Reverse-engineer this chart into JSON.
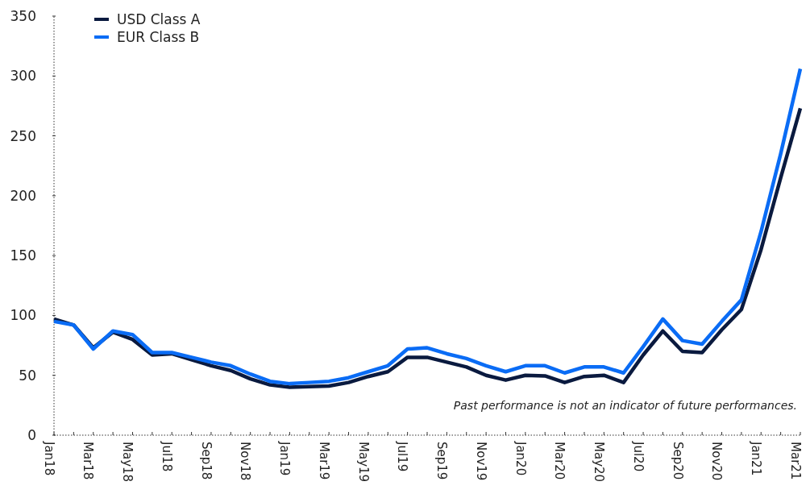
{
  "chart_data": {
    "type": "line",
    "categories": [
      "Jan18",
      null,
      "Mar18",
      null,
      "May18",
      null,
      "Jul18",
      null,
      "Sep18",
      null,
      "Nov18",
      null,
      "Jan19",
      null,
      "Mar19",
      null,
      "May19",
      null,
      "Jul19",
      null,
      "Sep19",
      null,
      "Nov19",
      null,
      "Jan20",
      null,
      "Mar20",
      null,
      "May20",
      null,
      "Jul20",
      null,
      "Sep20",
      null,
      "Nov20",
      null,
      "Jan21",
      null,
      "Mar21"
    ],
    "series": [
      {
        "name": "USD Class A",
        "color": "#0a1a3f",
        "values": [
          97,
          92,
          73,
          86,
          80,
          67,
          68,
          63,
          58,
          54,
          47,
          42,
          40,
          40.5,
          41,
          44,
          49,
          53,
          65,
          65,
          61,
          57,
          50,
          46,
          50,
          49.5,
          44,
          49,
          50,
          44,
          67,
          87,
          70,
          69,
          88,
          105,
          155,
          215,
          273
        ]
      },
      {
        "name": "EUR Class B",
        "color": "#0a6cf5",
        "values": [
          95,
          92,
          72,
          87,
          84,
          69,
          69,
          65,
          61,
          58,
          51,
          45,
          43,
          44,
          45,
          48,
          53,
          58,
          72,
          73,
          68,
          64,
          58,
          53,
          58,
          58,
          52,
          57,
          57,
          52,
          74,
          97,
          79,
          76,
          95,
          113,
          170,
          235,
          306
        ]
      }
    ],
    "ylim": [
      0,
      350
    ],
    "yticks": [
      0,
      50,
      100,
      150,
      200,
      250,
      300,
      350
    ],
    "grid": false,
    "legend": "top left",
    "marker": "none",
    "line_style": "solid",
    "annotations": [
      "Past performance is not an indicator of future performances."
    ]
  }
}
